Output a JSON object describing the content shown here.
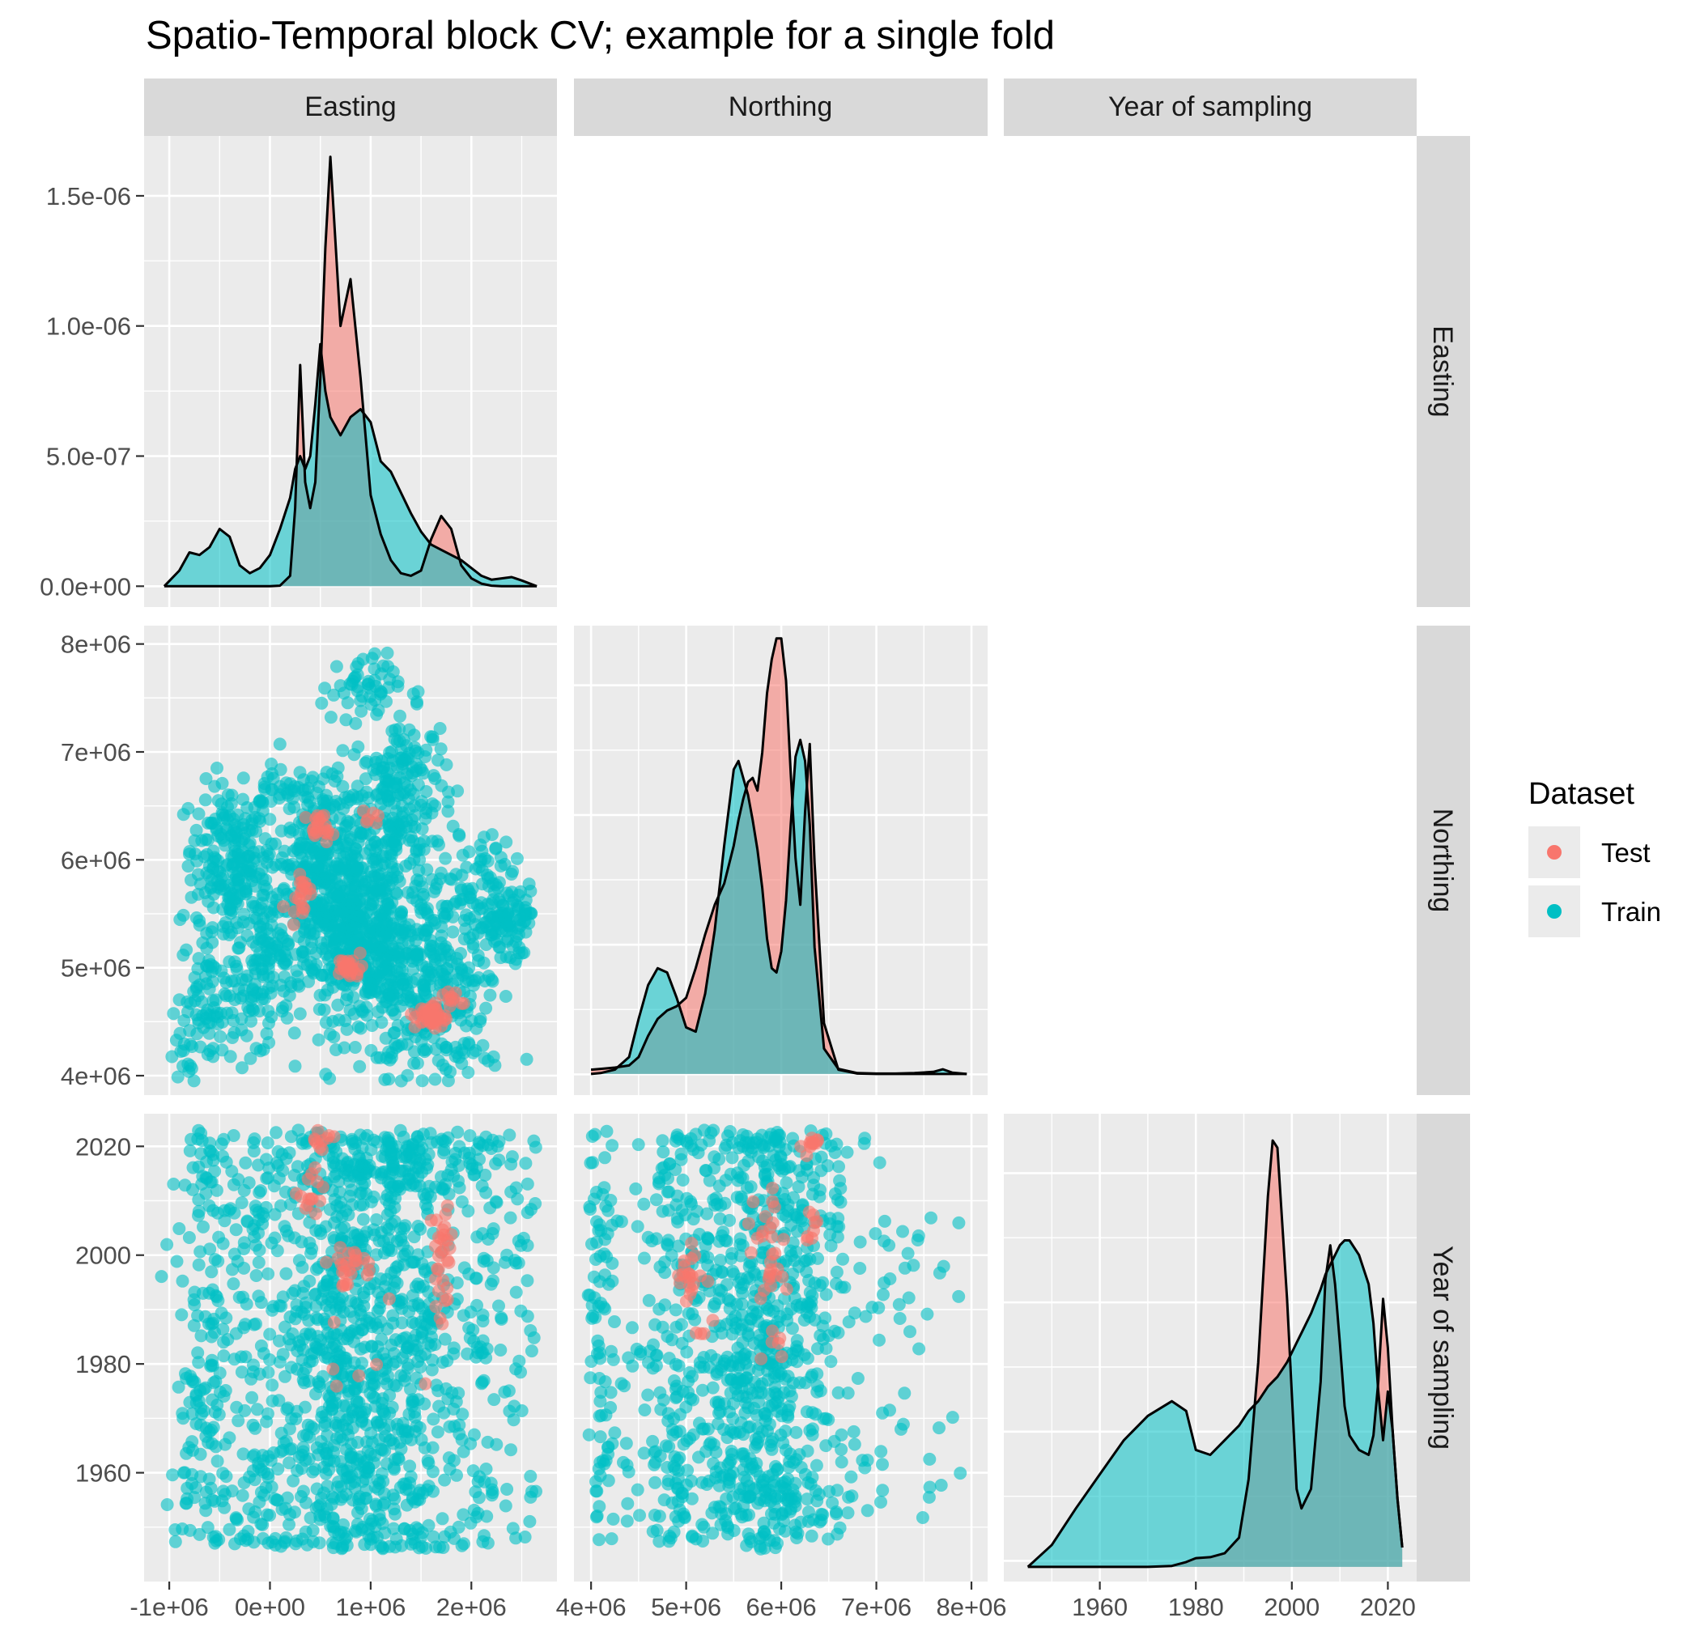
{
  "chart_data": {
    "type": "scatter",
    "title": "Spatio-Temporal block CV; example for a single fold",
    "variables": [
      "Easting",
      "Northing",
      "Year of sampling"
    ],
    "legend": {
      "title": "Dataset",
      "position": "right",
      "entries": [
        "Test",
        "Train"
      ]
    },
    "colors": {
      "Test": "#F8766D",
      "Train": "#00BFC4",
      "panel_bg": "#EBEBEB",
      "strip_bg": "#D9D9D9",
      "grid": "#FFFFFF"
    },
    "grid": true,
    "axes": {
      "Easting": {
        "ticks": [
          -1000000,
          0,
          1000000,
          2000000
        ],
        "tick_labels": [
          "-1e+06",
          "0e+00",
          "1e+06",
          "2e+06"
        ],
        "range": [
          -1250000,
          2850000
        ]
      },
      "Northing": {
        "ticks": [
          4000000,
          5000000,
          6000000,
          7000000,
          8000000
        ],
        "tick_labels": [
          "4e+06",
          "5e+06",
          "6e+06",
          "7e+06",
          "8e+06"
        ],
        "range": [
          3820000,
          8170000
        ]
      },
      "Year of sampling": {
        "ticks": [
          1960,
          1980,
          2000,
          2020
        ],
        "tick_labels": [
          "1960",
          "1980",
          "2000",
          "2020"
        ],
        "range": [
          1940,
          2026
        ]
      },
      "density": {
        "ticks": [
          0,
          5e-07,
          1e-06,
          1.5e-06
        ],
        "tick_labels": [
          "0.0e+00",
          "5.0e-07",
          "1.0e-06",
          "1.5e-06"
        ],
        "range": [
          -8e-08,
          1.73e-06
        ]
      }
    },
    "density_easting": {
      "x": [
        -1050000,
        -900000,
        -800000,
        -700000,
        -600000,
        -500000,
        -400000,
        -300000,
        -200000,
        -100000,
        0,
        100000,
        200000,
        250000,
        300000,
        350000,
        400000,
        450000,
        500000,
        550000,
        600000,
        700000,
        800000,
        900000,
        1000000,
        1100000,
        1200000,
        1300000,
        1400000,
        1500000,
        1600000,
        1700000,
        1800000,
        1900000,
        2000000,
        2100000,
        2200000,
        2300000,
        2400000,
        2500000,
        2650000
      ],
      "series": [
        {
          "name": "Test",
          "values": [
            0,
            0,
            0,
            0,
            0,
            0,
            0,
            0,
            0,
            0,
            0,
            2e-09,
            4e-08,
            3e-07,
            8.5e-07,
            4e-07,
            3e-07,
            4e-07,
            8e-07,
            1.3e-06,
            1.65e-06,
            1e-06,
            1.18e-06,
            8e-07,
            3.5e-07,
            2e-07,
            1e-07,
            5e-08,
            4e-08,
            6e-08,
            1.8e-07,
            2.7e-07,
            2.2e-07,
            8e-08,
            3e-08,
            1e-08,
            2e-09,
            0,
            0,
            0,
            0
          ]
        },
        {
          "name": "Train",
          "values": [
            0,
            6e-08,
            1.3e-07,
            1.2e-07,
            1.5e-07,
            2.2e-07,
            1.9e-07,
            8e-08,
            5e-08,
            7e-08,
            1.2e-07,
            2.2e-07,
            3.4e-07,
            4.5e-07,
            5e-07,
            4.5e-07,
            5e-07,
            7e-07,
            9.3e-07,
            7.5e-07,
            6.5e-07,
            5.8e-07,
            6.5e-07,
            6.8e-07,
            6.3e-07,
            4.8e-07,
            4.4e-07,
            3.6e-07,
            2.8e-07,
            2.1e-07,
            1.6e-07,
            1.4e-07,
            1.2e-07,
            1e-07,
            7e-08,
            4e-08,
            2.5e-08,
            3e-08,
            3.5e-08,
            2.2e-08,
            0
          ]
        }
      ]
    },
    "density_northing": {
      "x": [
        4000000,
        4100000,
        4250000,
        4400000,
        4500000,
        4600000,
        4700000,
        4800000,
        4900000,
        5000000,
        5100000,
        5200000,
        5300000,
        5400000,
        5500000,
        5550000,
        5600000,
        5650000,
        5700000,
        5750000,
        5800000,
        5850000,
        5900000,
        5950000,
        6000000,
        6050000,
        6100000,
        6150000,
        6200000,
        6250000,
        6300000,
        6350000,
        6450000,
        6600000,
        6800000,
        7000000,
        7200000,
        7400000,
        7600000,
        7700000,
        7800000,
        7950000
      ],
      "series": [
        {
          "name": "Test",
          "values": [
            1e-08,
            1.2e-08,
            1.5e-08,
            2e-08,
            4e-08,
            9e-08,
            1.3e-07,
            1.5e-07,
            1.6e-07,
            1.8e-07,
            2.5e-07,
            3.3e-07,
            4e-07,
            4.5e-07,
            5.4e-07,
            6e-07,
            6.5e-07,
            6.9e-07,
            7e-07,
            6.7e-07,
            7.6e-07,
            9e-07,
            9.8e-07,
            1.03e-06,
            1.03e-06,
            9.3e-07,
            7.1e-07,
            5.1e-07,
            4e-07,
            6.2e-07,
            7.8e-07,
            5e-07,
            1.2e-07,
            1e-08,
            1e-09,
            0,
            0,
            0,
            0,
            0,
            0,
            0
          ]
        },
        {
          "name": "Train",
          "values": [
            0,
            2e-09,
            1e-08,
            4e-08,
            1.3e-07,
            2.1e-07,
            2.5e-07,
            2.4e-07,
            1.8e-07,
            1.1e-07,
            1e-07,
            1.9e-07,
            3.4e-07,
            5.4e-07,
            7.2e-07,
            7.4e-07,
            7e-07,
            6.6e-07,
            6e-07,
            5.3e-07,
            4.4e-07,
            3.2e-07,
            2.5e-07,
            2.4e-07,
            2.9e-07,
            4.1e-07,
            5.9e-07,
            7.5e-07,
            7.9e-07,
            7.4e-07,
            5.9e-07,
            3e-07,
            6e-08,
            1.2e-08,
            2e-09,
            1e-09,
            1e-09,
            2e-09,
            5e-09,
            1.1e-08,
            3e-09,
            0
          ]
        }
      ]
    },
    "density_year": {
      "x": [
        1945,
        1950,
        1955,
        1960,
        1965,
        1970,
        1975,
        1978,
        1980,
        1983,
        1986,
        1989,
        1991,
        1993,
        1995,
        1996,
        1997,
        1999,
        2001,
        2002,
        2004,
        2006,
        2007,
        2008,
        2009,
        2010,
        2011,
        2012,
        2014,
        2016,
        2017,
        2018,
        2019,
        2020,
        2021,
        2022,
        2023
      ],
      "series": [
        {
          "name": "Test",
          "values": [
            0,
            0,
            0,
            0,
            0,
            0,
            0.002,
            0.01,
            0.018,
            0.02,
            0.028,
            0.06,
            0.18,
            0.42,
            0.76,
            0.875,
            0.86,
            0.55,
            0.16,
            0.12,
            0.16,
            0.38,
            0.59,
            0.66,
            0.58,
            0.46,
            0.33,
            0.27,
            0.24,
            0.23,
            0.27,
            0.38,
            0.55,
            0.45,
            0.28,
            0.14,
            0.04
          ]
        },
        {
          "name": "Train",
          "values": [
            0,
            0.045,
            0.12,
            0.19,
            0.26,
            0.31,
            0.34,
            0.32,
            0.24,
            0.23,
            0.26,
            0.29,
            0.32,
            0.34,
            0.37,
            0.38,
            0.39,
            0.42,
            0.46,
            0.48,
            0.52,
            0.57,
            0.6,
            0.62,
            0.64,
            0.66,
            0.67,
            0.67,
            0.64,
            0.58,
            0.5,
            0.36,
            0.26,
            0.36,
            0.28,
            0.14,
            0.04
          ]
        }
      ]
    },
    "scatter_regions": [
      {
        "panel": "Northing vs Easting",
        "series": "Train",
        "x_range": [
          -600000,
          2600000
        ],
        "y_range": [
          3950000,
          7950000
        ]
      },
      {
        "panel": "Northing vs Easting",
        "series": "Test",
        "x_range": [
          100000,
          2000000
        ],
        "y_range": [
          4400000,
          6450000
        ]
      },
      {
        "panel": "Year vs Easting",
        "series": "Train",
        "x_range": [
          -1050000,
          2600000
        ],
        "y_range": [
          1946,
          2023
        ]
      },
      {
        "panel": "Year vs Easting",
        "series": "Test",
        "x_range": [
          200000,
          1900000
        ],
        "y_range": [
          1975,
          2022
        ]
      },
      {
        "panel": "Year vs Northing",
        "series": "Train",
        "x_range": [
          3950000,
          7900000
        ],
        "y_range": [
          1946,
          2023
        ]
      },
      {
        "panel": "Year vs Northing",
        "series": "Test",
        "x_range": [
          4700000,
          6400000
        ],
        "y_range": [
          1978,
          2022
        ]
      }
    ]
  }
}
